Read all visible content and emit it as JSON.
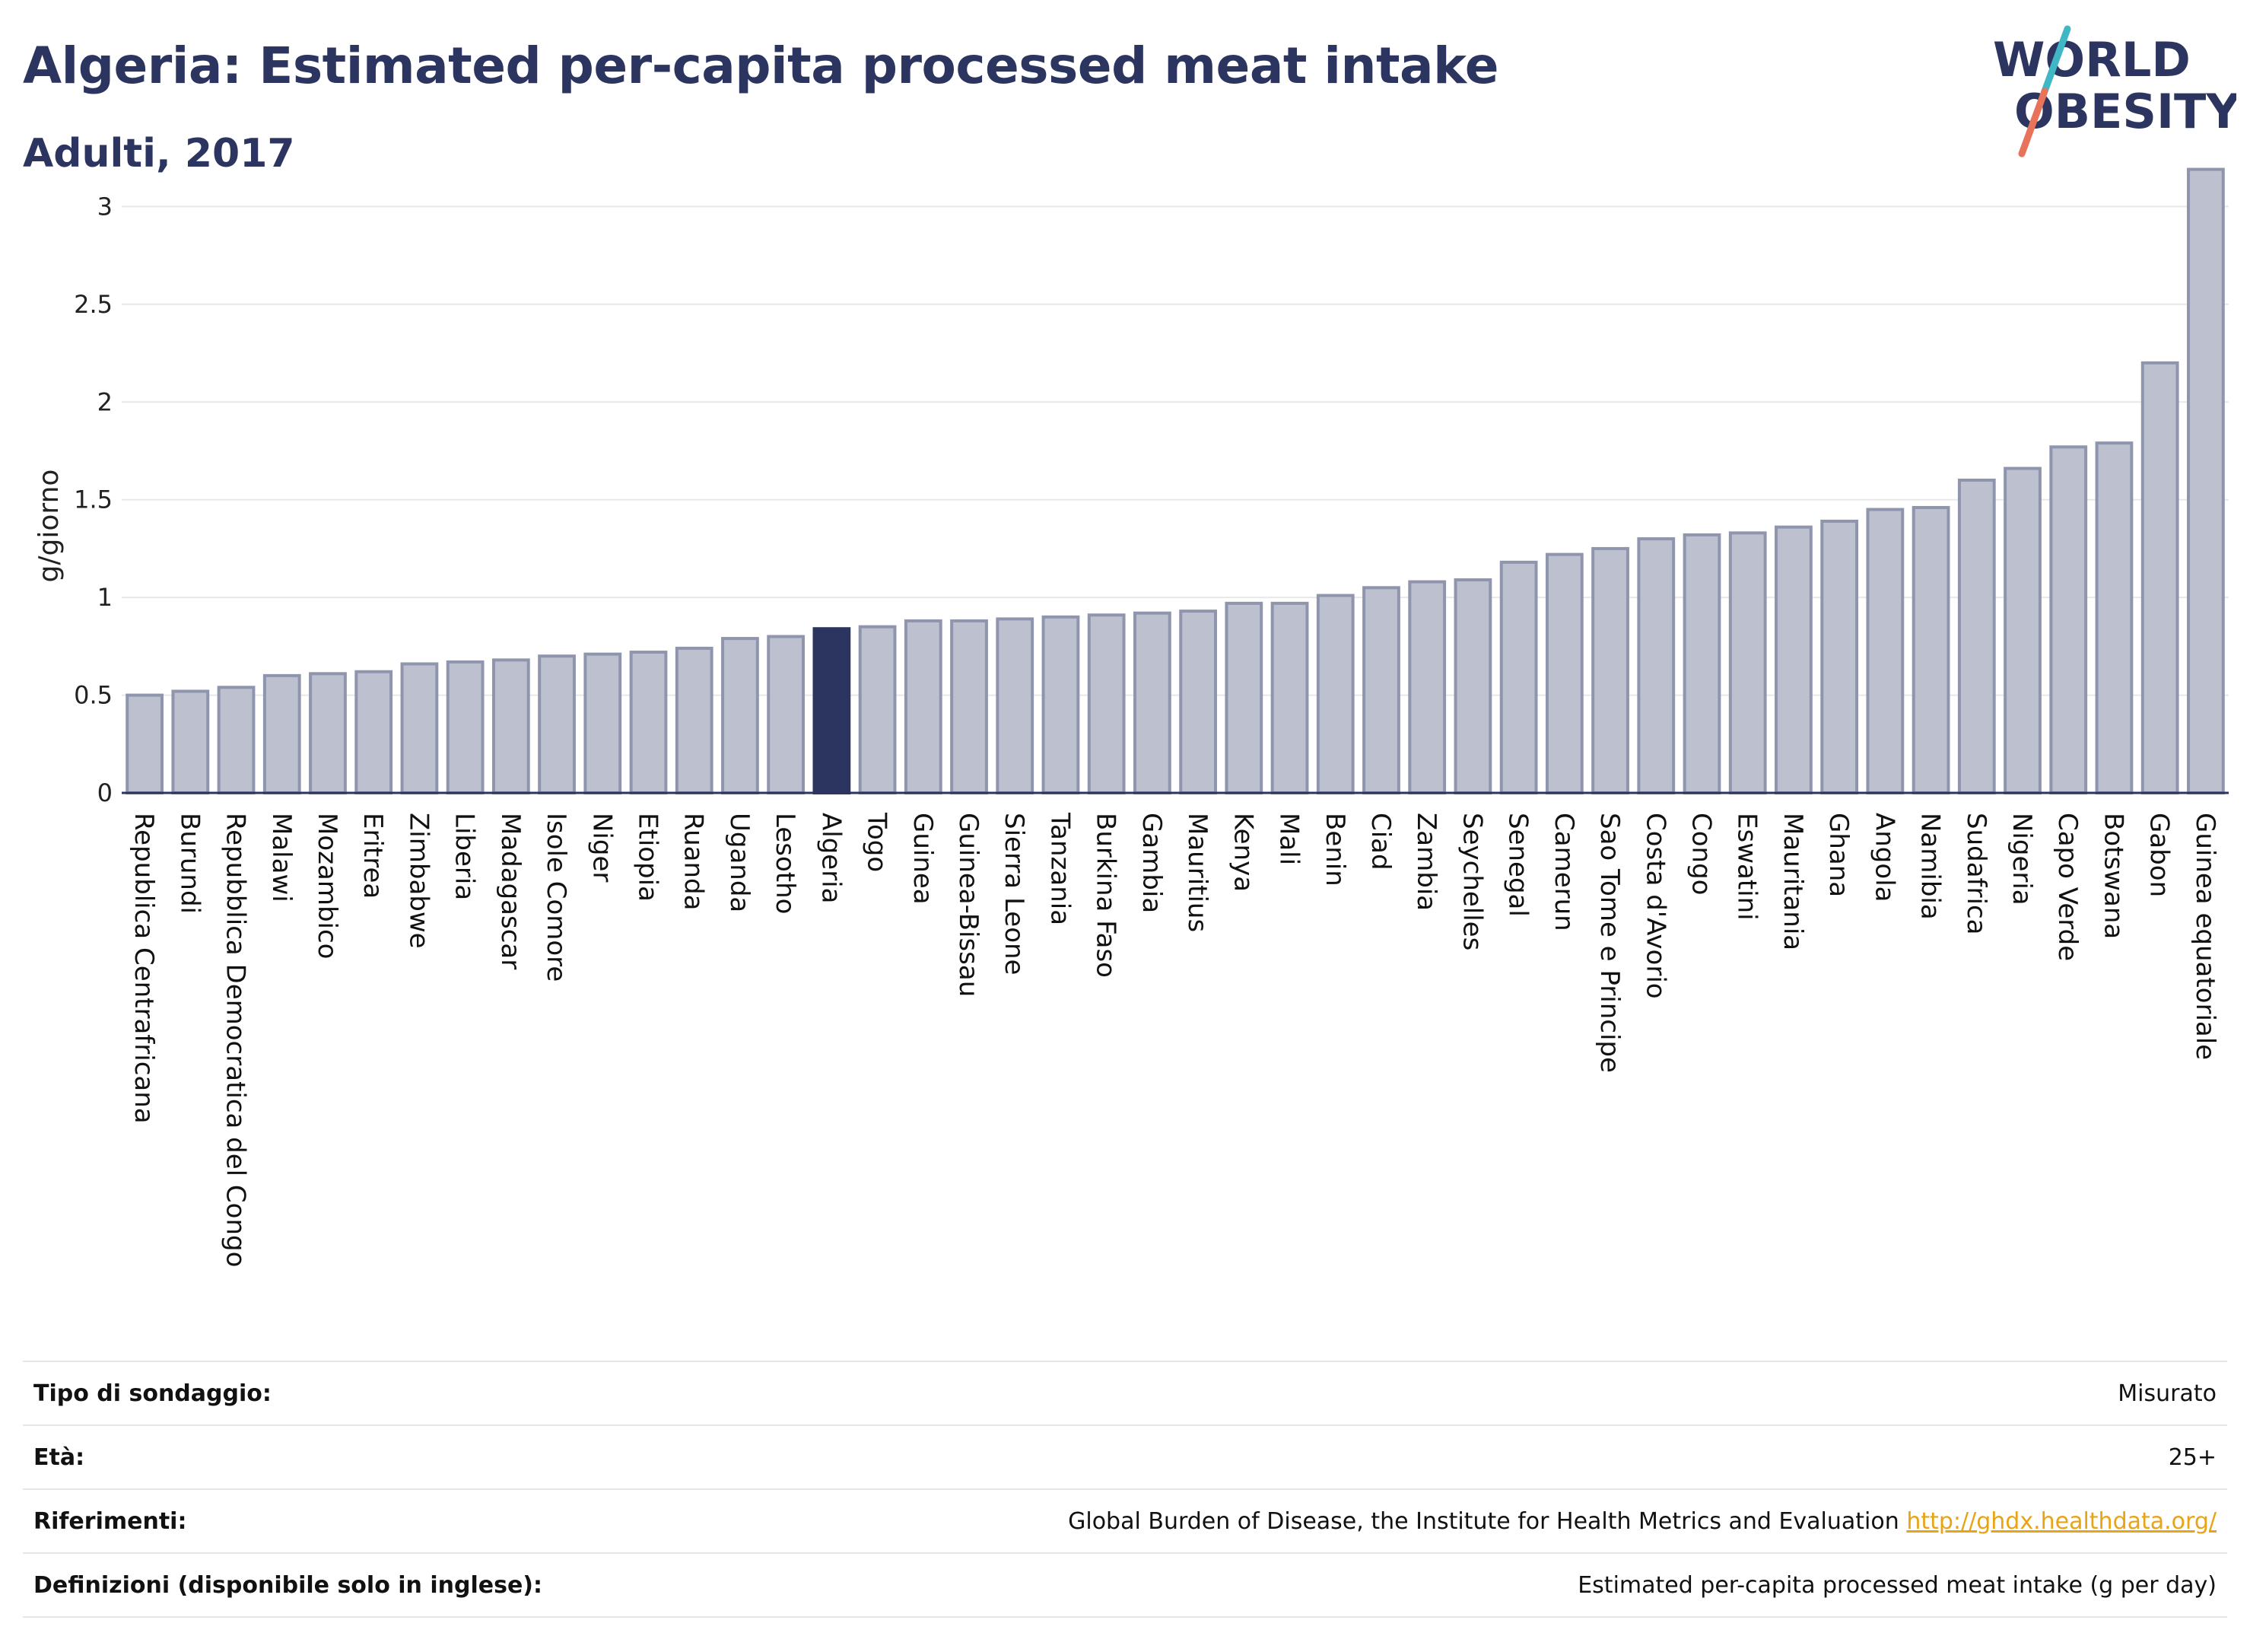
{
  "header": {
    "title": "Algeria: Estimated per-capita processed meat intake",
    "subtitle": "Adulti, 2017"
  },
  "logo": {
    "line1": "WORLD",
    "line2": "OBESITY",
    "colors": {
      "text": "#2b3560",
      "slash_top": "#3fb7c4",
      "slash_bottom": "#e8735a"
    }
  },
  "colors": {
    "bar_fill": "#bcc0cf",
    "bar_stroke": "#8f95ad",
    "highlight": "#2b3560",
    "grid": "#e8e8e8",
    "axis": "#2b3560"
  },
  "chart_data": {
    "type": "bar",
    "title": "Algeria: Estimated per-capita processed meat intake",
    "subtitle": "Adulti, 2017",
    "ylabel": "g/giorno",
    "xlabel": "",
    "ylim": [
      0,
      3.2
    ],
    "yticks": [
      0,
      0.5,
      1,
      1.5,
      2,
      2.5,
      3
    ],
    "ytick_labels": [
      "0",
      "0.5",
      "1",
      "1.5",
      "2",
      "2.5",
      "3"
    ],
    "grid": true,
    "legend": "none",
    "highlight": "Algeria",
    "categories": [
      "Republica Centrafricana",
      "Burundi",
      "Repubblica Democratica del Congo",
      "Malawi",
      "Mozambico",
      "Eritrea",
      "Zimbabwe",
      "Liberia",
      "Madagascar",
      "Isole Comore",
      "Niger",
      "Etiopia",
      "Ruanda",
      "Uganda",
      "Lesotho",
      "Algeria",
      "Togo",
      "Guinea",
      "Guinea-Bissau",
      "Sierra Leone",
      "Tanzania",
      "Burkina Faso",
      "Gambia",
      "Mauritius",
      "Kenya",
      "Mali",
      "Benin",
      "Ciad",
      "Zambia",
      "Seychelles",
      "Senegal",
      "Camerun",
      "Sao Tome e Principe",
      "Costa d'Avorio",
      "Congo",
      "Eswatini",
      "Mauritania",
      "Ghana",
      "Angola",
      "Namibia",
      "Sudafrica",
      "Nigeria",
      "Capo Verde",
      "Botswana",
      "Gabon",
      "Guinea equatoriale"
    ],
    "values": [
      0.5,
      0.52,
      0.54,
      0.6,
      0.61,
      0.62,
      0.66,
      0.67,
      0.68,
      0.7,
      0.71,
      0.72,
      0.74,
      0.79,
      0.8,
      0.84,
      0.85,
      0.88,
      0.88,
      0.89,
      0.9,
      0.91,
      0.92,
      0.93,
      0.97,
      0.97,
      1.01,
      1.05,
      1.08,
      1.09,
      1.18,
      1.22,
      1.25,
      1.3,
      1.32,
      1.33,
      1.36,
      1.39,
      1.45,
      1.46,
      1.6,
      1.66,
      1.77,
      1.79,
      2.2,
      3.19
    ]
  },
  "info": {
    "rows": [
      {
        "label": "Tipo di sondaggio:",
        "value": "Misurato",
        "link": ""
      },
      {
        "label": "Età:",
        "value": "25+",
        "link": ""
      },
      {
        "label": "Riferimenti:",
        "value": "Global Burden of Disease, the Institute for Health Metrics and Evaluation",
        "link": "http://ghdx.healthdata.org/"
      },
      {
        "label": "Definizioni (disponibile solo in inglese):",
        "value": "Estimated per-capita processed meat intake (g per day)",
        "link": ""
      }
    ]
  }
}
